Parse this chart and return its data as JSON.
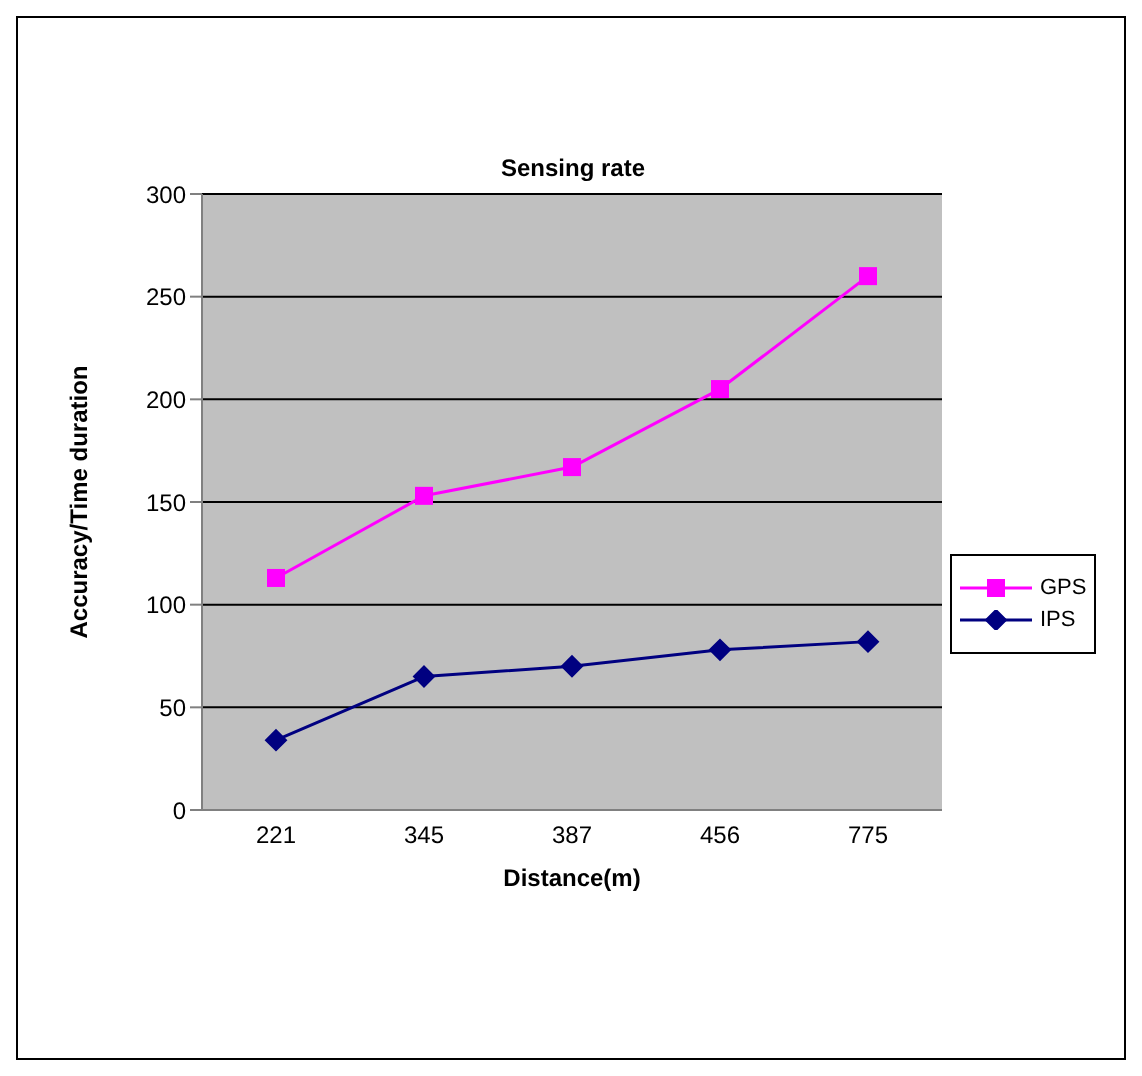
{
  "chart_data": {
    "type": "line",
    "title": "Sensing rate",
    "xlabel": "Distance(m)",
    "ylabel": "Accuracy/Time duration",
    "categories": [
      "221",
      "345",
      "387",
      "456",
      "775"
    ],
    "series": [
      {
        "name": "GPS",
        "color": "#ff00ff",
        "marker": "square",
        "values": [
          113,
          153,
          167,
          205,
          260
        ]
      },
      {
        "name": "IPS",
        "color": "#000080",
        "marker": "diamond",
        "values": [
          34,
          65,
          70,
          78,
          82
        ]
      }
    ],
    "ylim": [
      0,
      300
    ],
    "yticks": [
      0,
      50,
      100,
      150,
      200,
      250,
      300
    ],
    "grid": "y",
    "legend": "right",
    "line_style": "solid"
  }
}
